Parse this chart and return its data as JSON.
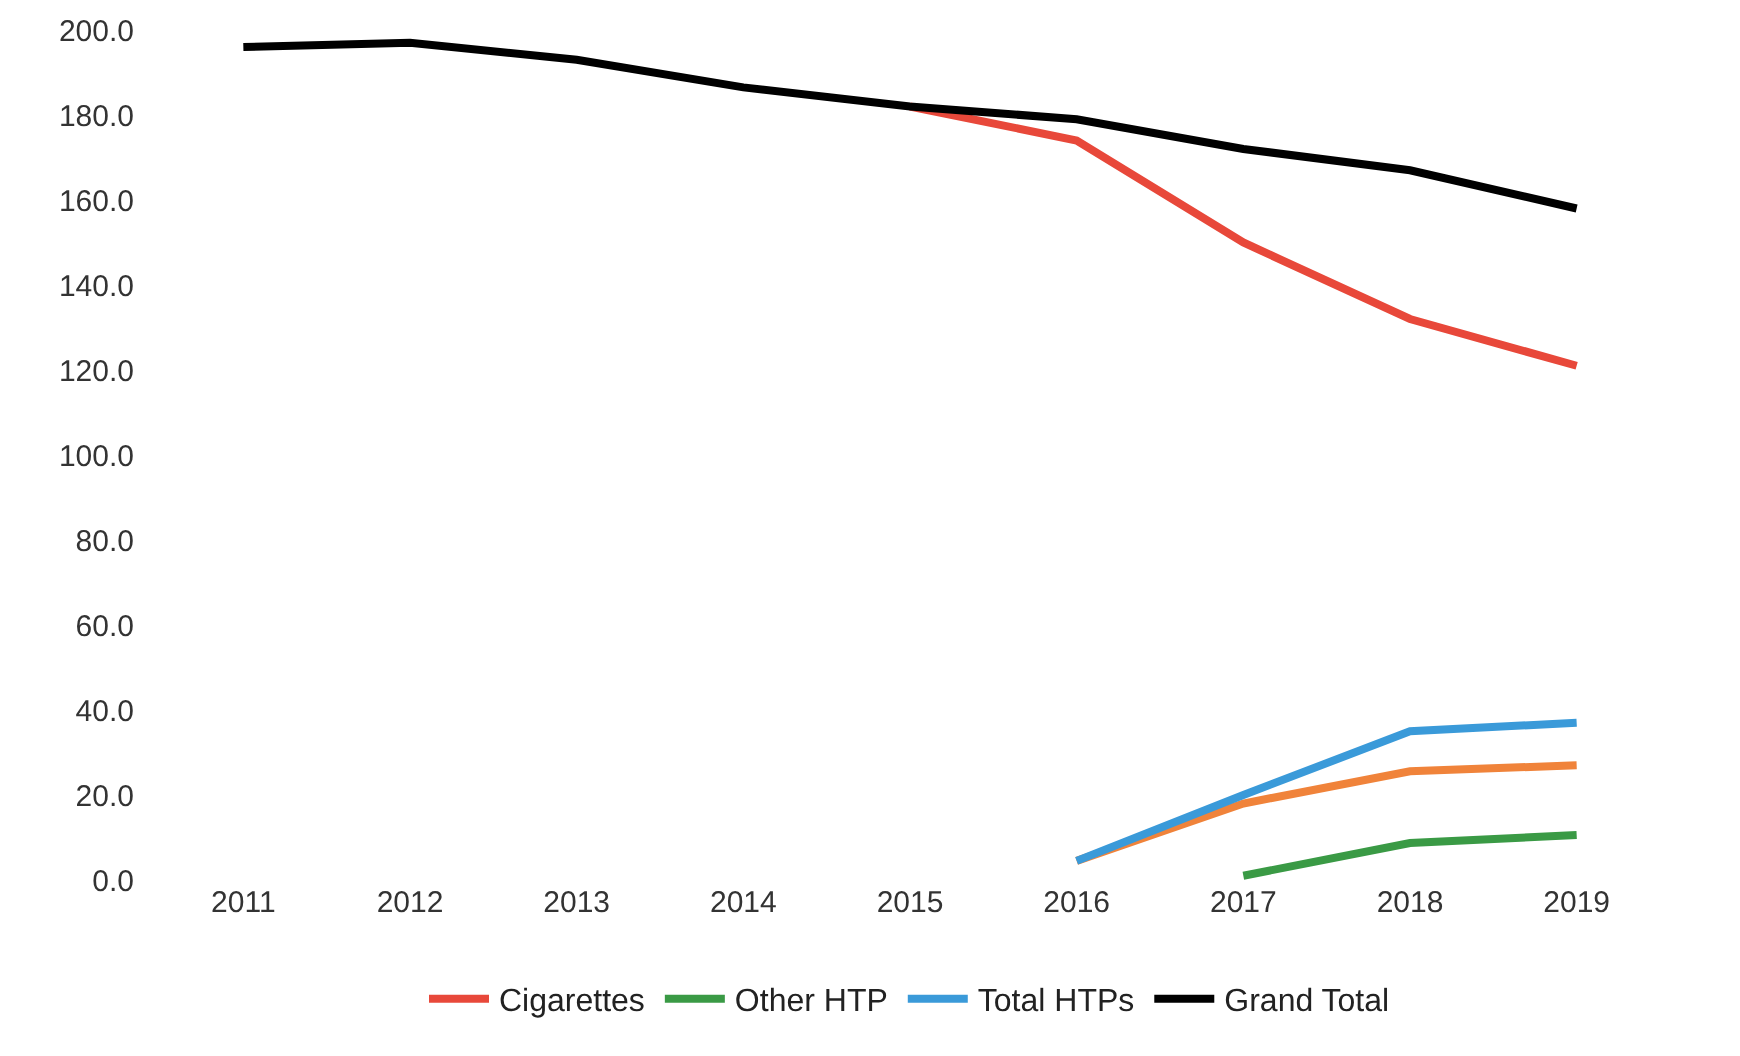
{
  "chart_data": {
    "type": "line",
    "categories": [
      "2011",
      "2012",
      "2013",
      "2014",
      "2015",
      "2016",
      "2017",
      "2018",
      "2019"
    ],
    "series": [
      {
        "name": "Cigarettes",
        "color": "#e8483a",
        "values": [
          null,
          null,
          null,
          null,
          182,
          174,
          150,
          132,
          121
        ]
      },
      {
        "color": "#f0833a",
        "values": [
          null,
          null,
          null,
          null,
          null,
          4.5,
          18,
          25.6,
          27
        ]
      },
      {
        "name": "Other HTP",
        "color": "#3a9a45",
        "values": [
          null,
          null,
          null,
          null,
          null,
          null,
          1,
          8.7,
          10.6
        ]
      },
      {
        "name": "Total HTPs",
        "color": "#3a9ad9",
        "values": [
          null,
          null,
          null,
          null,
          null,
          4.5,
          20,
          35,
          37
        ]
      },
      {
        "name": "Grand Total",
        "color": "#000000",
        "values": [
          196,
          197,
          193,
          186.5,
          182,
          179,
          172,
          167,
          158
        ]
      }
    ],
    "ylim": [
      0,
      200
    ],
    "yticks": [
      {
        "value": 0,
        "label": "0.0"
      },
      {
        "value": 20,
        "label": "20.0"
      },
      {
        "value": 40,
        "label": "40.0"
      },
      {
        "value": 60,
        "label": "60.0"
      },
      {
        "value": 80,
        "label": "80.0"
      },
      {
        "value": 100,
        "label": "100.0"
      },
      {
        "value": 120,
        "label": "120.0"
      },
      {
        "value": 140,
        "label": "140.0"
      },
      {
        "value": 160,
        "label": "160.0"
      },
      {
        "value": 180,
        "label": "180.0"
      },
      {
        "value": 200,
        "label": "200.0"
      }
    ],
    "grid": false,
    "legend": "bottom",
    "marker": "none",
    "line_style": "solid"
  }
}
